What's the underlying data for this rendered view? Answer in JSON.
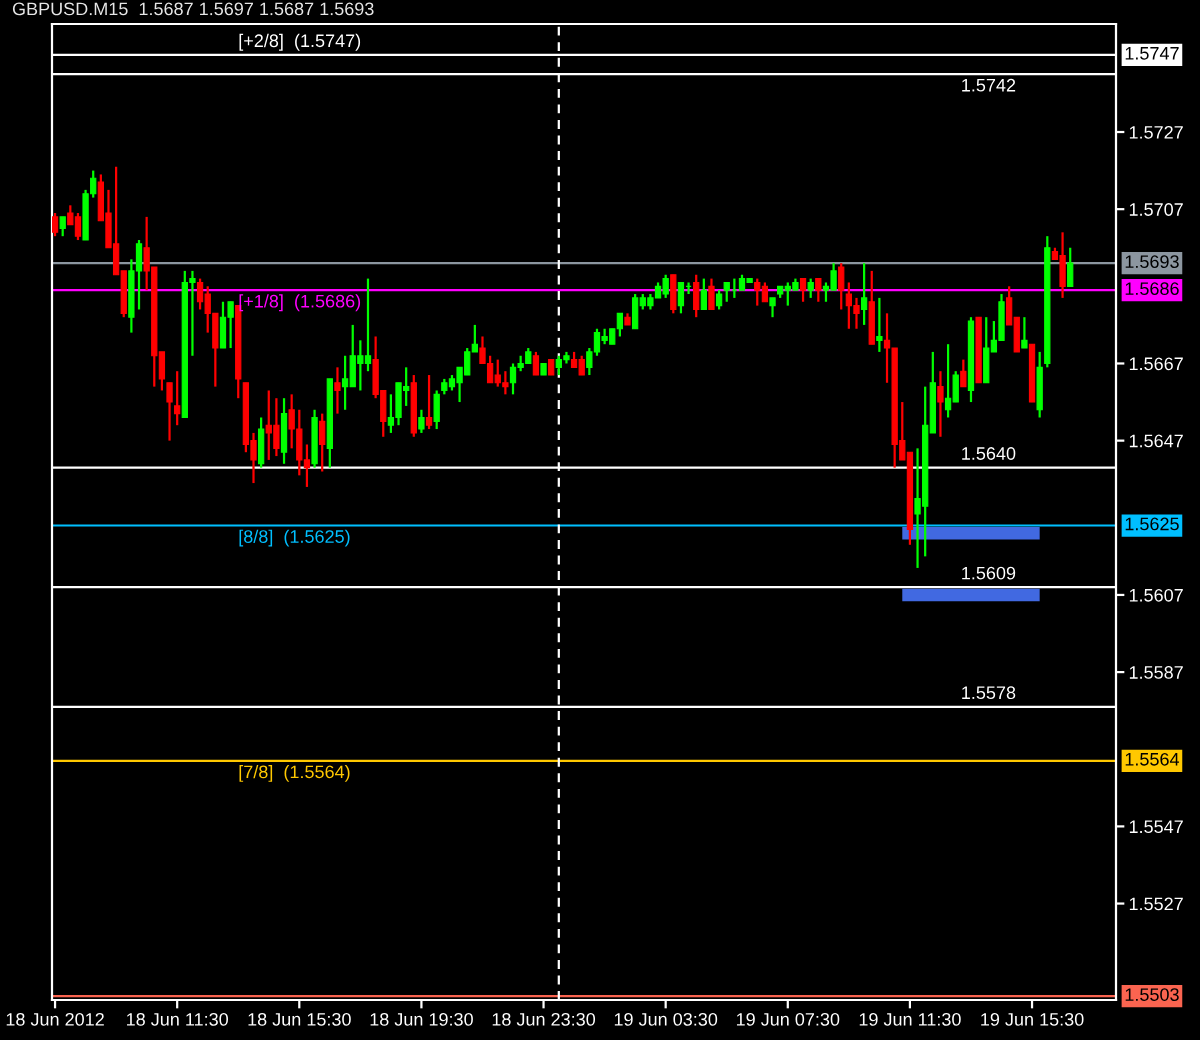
{
  "chart_data": {
    "type": "candlestick",
    "title": "GBPUSD.M15  1.5687 1.5697 1.5687 1.5693",
    "x": [
      "2012-06-18T07:30",
      "2012-06-18T07:45",
      "2012-06-18T08:00",
      "2012-06-18T08:15",
      "2012-06-18T08:30",
      "2012-06-18T08:45",
      "2012-06-18T09:00",
      "2012-06-18T09:15",
      "2012-06-18T09:30",
      "2012-06-18T09:45",
      "2012-06-18T10:00",
      "2012-06-18T10:15",
      "2012-06-18T10:30",
      "2012-06-18T10:45",
      "2012-06-18T11:00",
      "2012-06-18T11:15",
      "2012-06-18T11:30",
      "2012-06-18T11:45",
      "2012-06-18T12:00",
      "2012-06-18T12:15",
      "2012-06-18T12:30",
      "2012-06-18T12:45",
      "2012-06-18T13:00",
      "2012-06-18T13:15",
      "2012-06-18T13:30",
      "2012-06-18T13:45",
      "2012-06-18T14:00",
      "2012-06-18T14:15",
      "2012-06-18T14:30",
      "2012-06-18T14:45",
      "2012-06-18T15:00",
      "2012-06-18T15:15",
      "2012-06-18T15:30",
      "2012-06-18T15:45",
      "2012-06-18T16:00",
      "2012-06-18T16:15",
      "2012-06-18T16:30",
      "2012-06-18T16:45",
      "2012-06-18T17:00",
      "2012-06-18T17:15",
      "2012-06-18T17:30",
      "2012-06-18T17:45",
      "2012-06-18T18:00",
      "2012-06-18T18:15",
      "2012-06-18T18:30",
      "2012-06-18T18:45",
      "2012-06-18T19:00",
      "2012-06-18T19:15",
      "2012-06-18T19:30",
      "2012-06-18T19:45",
      "2012-06-18T20:00",
      "2012-06-18T20:15",
      "2012-06-18T20:30",
      "2012-06-18T20:45",
      "2012-06-18T21:00",
      "2012-06-18T21:15",
      "2012-06-18T21:30",
      "2012-06-18T21:45",
      "2012-06-18T22:00",
      "2012-06-18T22:15",
      "2012-06-18T22:30",
      "2012-06-18T22:45",
      "2012-06-18T23:00",
      "2012-06-18T23:15",
      "2012-06-18T23:30",
      "2012-06-18T23:45",
      "2012-06-19T00:00",
      "2012-06-19T00:15",
      "2012-06-19T00:30",
      "2012-06-19T00:45",
      "2012-06-19T01:00",
      "2012-06-19T01:15",
      "2012-06-19T01:30",
      "2012-06-19T01:45",
      "2012-06-19T02:00",
      "2012-06-19T02:15",
      "2012-06-19T02:30",
      "2012-06-19T02:45",
      "2012-06-19T03:00",
      "2012-06-19T03:15",
      "2012-06-19T03:30",
      "2012-06-19T03:45",
      "2012-06-19T04:00",
      "2012-06-19T04:15",
      "2012-06-19T04:30",
      "2012-06-19T04:45",
      "2012-06-19T05:00",
      "2012-06-19T05:15",
      "2012-06-19T05:30",
      "2012-06-19T05:45",
      "2012-06-19T06:00",
      "2012-06-19T06:15",
      "2012-06-19T06:30",
      "2012-06-19T06:45",
      "2012-06-19T07:00",
      "2012-06-19T07:15",
      "2012-06-19T07:30",
      "2012-06-19T07:45",
      "2012-06-19T08:00",
      "2012-06-19T08:15",
      "2012-06-19T08:30",
      "2012-06-19T08:45",
      "2012-06-19T09:00",
      "2012-06-19T09:15",
      "2012-06-19T09:30",
      "2012-06-19T09:45",
      "2012-06-19T10:00",
      "2012-06-19T10:15",
      "2012-06-19T10:30",
      "2012-06-19T10:45",
      "2012-06-19T11:00",
      "2012-06-19T11:15",
      "2012-06-19T11:30",
      "2012-06-19T11:45",
      "2012-06-19T12:00",
      "2012-06-19T12:15",
      "2012-06-19T12:30",
      "2012-06-19T12:45",
      "2012-06-19T13:00",
      "2012-06-19T13:15",
      "2012-06-19T13:30",
      "2012-06-19T13:45",
      "2012-06-19T14:00",
      "2012-06-19T14:15",
      "2012-06-19T14:30",
      "2012-06-19T14:45",
      "2012-06-19T15:00",
      "2012-06-19T15:15",
      "2012-06-19T15:30",
      "2012-06-19T15:45",
      "2012-06-19T16:00",
      "2012-06-19T16:15",
      "2012-06-19T16:30",
      "2012-06-19T16:45"
    ],
    "ohlc": [
      [
        1.5705,
        1.5706,
        1.57,
        1.5701
      ],
      [
        1.5702,
        1.5705,
        1.57,
        1.5705
      ],
      [
        1.5706,
        1.5708,
        1.5703,
        1.5703
      ],
      [
        1.5705,
        1.5706,
        1.5699,
        1.57
      ],
      [
        1.5699,
        1.5712,
        1.5699,
        1.5711
      ],
      [
        1.5711,
        1.5717,
        1.571,
        1.5715
      ],
      [
        1.5714,
        1.5716,
        1.5704,
        1.5704
      ],
      [
        1.5706,
        1.5712,
        1.5697,
        1.5697
      ],
      [
        1.5698,
        1.5718,
        1.569,
        1.569
      ],
      [
        1.5691,
        1.5691,
        1.5679,
        1.568
      ],
      [
        1.5679,
        1.5694,
        1.5675,
        1.5691
      ],
      [
        1.5691,
        1.5699,
        1.5681,
        1.5698
      ],
      [
        1.5697,
        1.5705,
        1.5686,
        1.5691
      ],
      [
        1.5692,
        1.5692,
        1.5661,
        1.5669
      ],
      [
        1.567,
        1.567,
        1.566,
        1.5663
      ],
      [
        1.5662,
        1.5662,
        1.5647,
        1.5657
      ],
      [
        1.5656,
        1.5665,
        1.5651,
        1.5654
      ],
      [
        1.5653,
        1.5691,
        1.5653,
        1.5688
      ],
      [
        1.5688,
        1.5691,
        1.5669,
        1.5689
      ],
      [
        1.5688,
        1.5689,
        1.5681,
        1.5683
      ],
      [
        1.5685,
        1.5687,
        1.5675,
        1.568
      ],
      [
        1.568,
        1.568,
        1.5661,
        1.5671
      ],
      [
        1.5671,
        1.5683,
        1.5671,
        1.5679
      ],
      [
        1.5679,
        1.5683,
        1.5671,
        1.5683
      ],
      [
        1.5682,
        1.5682,
        1.5658,
        1.5663
      ],
      [
        1.5662,
        1.5662,
        1.5644,
        1.5646
      ],
      [
        1.5647,
        1.5649,
        1.5636,
        1.5642
      ],
      [
        1.5641,
        1.5653,
        1.564,
        1.565
      ],
      [
        1.5651,
        1.566,
        1.5642,
        1.5649
      ],
      [
        1.5651,
        1.5658,
        1.5643,
        1.5645
      ],
      [
        1.5644,
        1.5658,
        1.5641,
        1.5654
      ],
      [
        1.5655,
        1.5659,
        1.5645,
        1.565
      ],
      [
        1.565,
        1.5655,
        1.5638,
        1.5642
      ],
      [
        1.5642,
        1.5646,
        1.5635,
        1.564
      ],
      [
        1.5641,
        1.5655,
        1.564,
        1.5653
      ],
      [
        1.5652,
        1.5654,
        1.5639,
        1.5646
      ],
      [
        1.5645,
        1.5663,
        1.564,
        1.5663
      ],
      [
        1.5662,
        1.5666,
        1.5654,
        1.566
      ],
      [
        1.5661,
        1.5669,
        1.5655,
        1.5663
      ],
      [
        1.5661,
        1.5677,
        1.5661,
        1.5669
      ],
      [
        1.5667,
        1.5673,
        1.566,
        1.5669
      ],
      [
        1.5667,
        1.5689,
        1.5665,
        1.5669
      ],
      [
        1.5668,
        1.5674,
        1.5658,
        1.5659
      ],
      [
        1.566,
        1.566,
        1.5648,
        1.5652
      ],
      [
        1.5651,
        1.5659,
        1.5649,
        1.5653
      ],
      [
        1.5653,
        1.5662,
        1.5651,
        1.5662
      ],
      [
        1.566,
        1.5666,
        1.5656,
        1.5661
      ],
      [
        1.5662,
        1.5664,
        1.5648,
        1.5649
      ],
      [
        1.565,
        1.5655,
        1.5649,
        1.5653
      ],
      [
        1.5653,
        1.5664,
        1.565,
        1.5651
      ],
      [
        1.5652,
        1.566,
        1.565,
        1.5659
      ],
      [
        1.566,
        1.5663,
        1.5659,
        1.5662
      ],
      [
        1.5661,
        1.5664,
        1.566,
        1.5663
      ],
      [
        1.5662,
        1.5666,
        1.5657,
        1.5666
      ],
      [
        1.5664,
        1.5671,
        1.5664,
        1.567
      ],
      [
        1.567,
        1.5677,
        1.567,
        1.5672
      ],
      [
        1.5671,
        1.5674,
        1.5667,
        1.5667
      ],
      [
        1.5667,
        1.5669,
        1.5662,
        1.5662
      ],
      [
        1.5664,
        1.5668,
        1.5661,
        1.5662
      ],
      [
        1.5662,
        1.5665,
        1.5659,
        1.5661
      ],
      [
        1.5662,
        1.5667,
        1.5659,
        1.5666
      ],
      [
        1.5666,
        1.5669,
        1.5665,
        1.5667
      ],
      [
        1.5667,
        1.5671,
        1.5667,
        1.567
      ],
      [
        1.5669,
        1.567,
        1.5664,
        1.5664
      ],
      [
        1.5664,
        1.5667,
        1.5664,
        1.5667
      ],
      [
        1.5668,
        1.5668,
        1.5664,
        1.5664
      ],
      [
        1.5666,
        1.5669,
        1.5664,
        1.5668
      ],
      [
        1.5668,
        1.567,
        1.5667,
        1.5669
      ],
      [
        1.5668,
        1.567,
        1.5666,
        1.5666
      ],
      [
        1.5668,
        1.5669,
        1.5664,
        1.5664
      ],
      [
        1.5666,
        1.5671,
        1.5664,
        1.567
      ],
      [
        1.567,
        1.5676,
        1.5669,
        1.5675
      ],
      [
        1.5673,
        1.5676,
        1.5672,
        1.5674
      ],
      [
        1.5672,
        1.5676,
        1.5672,
        1.5676
      ],
      [
        1.5676,
        1.568,
        1.5674,
        1.568
      ],
      [
        1.5679,
        1.568,
        1.5677,
        1.5677
      ],
      [
        1.5676,
        1.5685,
        1.5676,
        1.5684
      ],
      [
        1.5682,
        1.5685,
        1.5681,
        1.5684
      ],
      [
        1.5682,
        1.5685,
        1.5681,
        1.5684
      ],
      [
        1.5684,
        1.5688,
        1.5684,
        1.5687
      ],
      [
        1.5685,
        1.569,
        1.5684,
        1.5689
      ],
      [
        1.569,
        1.569,
        1.568,
        1.5681
      ],
      [
        1.5682,
        1.5688,
        1.568,
        1.5688
      ],
      [
        1.5687,
        1.5688,
        1.5685,
        1.5687
      ],
      [
        1.5688,
        1.569,
        1.5679,
        1.5681
      ],
      [
        1.5681,
        1.5689,
        1.5681,
        1.5686
      ],
      [
        1.5687,
        1.5689,
        1.5681,
        1.5681
      ],
      [
        1.5682,
        1.5686,
        1.5681,
        1.5685
      ],
      [
        1.5686,
        1.5688,
        1.5683,
        1.5688
      ],
      [
        1.5686,
        1.5689,
        1.5684,
        1.5686
      ],
      [
        1.5686,
        1.569,
        1.5686,
        1.5689
      ],
      [
        1.5688,
        1.5689,
        1.5688,
        1.5689
      ],
      [
        1.5688,
        1.5689,
        1.5682,
        1.5686
      ],
      [
        1.5687,
        1.5688,
        1.5683,
        1.5683
      ],
      [
        1.5682,
        1.5684,
        1.5679,
        1.5684
      ],
      [
        1.5685,
        1.5687,
        1.5684,
        1.5687
      ],
      [
        1.5686,
        1.5688,
        1.5682,
        1.5687
      ],
      [
        1.5686,
        1.5689,
        1.5686,
        1.5688
      ],
      [
        1.5689,
        1.5689,
        1.5683,
        1.5686
      ],
      [
        1.5686,
        1.5689,
        1.5684,
        1.5688
      ],
      [
        1.5689,
        1.5689,
        1.5683,
        1.5686
      ],
      [
        1.5686,
        1.5688,
        1.5683,
        1.5687
      ],
      [
        1.5686,
        1.5693,
        1.5686,
        1.5691
      ],
      [
        1.5692,
        1.5693,
        1.5681,
        1.5686
      ],
      [
        1.5685,
        1.5688,
        1.5676,
        1.5682
      ],
      [
        1.5682,
        1.5684,
        1.5676,
        1.568
      ],
      [
        1.5681,
        1.5693,
        1.5677,
        1.5684
      ],
      [
        1.5683,
        1.5691,
        1.5672,
        1.5672
      ],
      [
        1.5673,
        1.5684,
        1.567,
        1.5674
      ],
      [
        1.5673,
        1.568,
        1.5662,
        1.5671
      ],
      [
        1.5671,
        1.5671,
        1.564,
        1.5646
      ],
      [
        1.5647,
        1.5657,
        1.5642,
        1.5642
      ],
      [
        1.5644,
        1.5644,
        1.562,
        1.5624
      ],
      [
        1.5628,
        1.5645,
        1.5614,
        1.5632
      ],
      [
        1.563,
        1.5661,
        1.5617,
        1.5651
      ],
      [
        1.5649,
        1.567,
        1.5649,
        1.5662
      ],
      [
        1.5661,
        1.5665,
        1.5648,
        1.5657
      ],
      [
        1.5655,
        1.5672,
        1.5653,
        1.5658
      ],
      [
        1.5657,
        1.5665,
        1.5657,
        1.5664
      ],
      [
        1.5665,
        1.5668,
        1.5661,
        1.5661
      ],
      [
        1.566,
        1.5679,
        1.5657,
        1.5678
      ],
      [
        1.5679,
        1.5679,
        1.5662,
        1.5662
      ],
      [
        1.5662,
        1.5679,
        1.5662,
        1.5671
      ],
      [
        1.567,
        1.5678,
        1.567,
        1.5673
      ],
      [
        1.5673,
        1.5685,
        1.5673,
        1.5683
      ],
      [
        1.5684,
        1.5687,
        1.5677,
        1.5677
      ],
      [
        1.5679,
        1.5679,
        1.567,
        1.567
      ],
      [
        1.5671,
        1.5679,
        1.5671,
        1.5673
      ],
      [
        1.5672,
        1.5672,
        1.5657,
        1.5657
      ],
      [
        1.5655,
        1.567,
        1.5653,
        1.5666
      ],
      [
        1.5667,
        1.57,
        1.5666,
        1.5697
      ],
      [
        1.5696,
        1.5697,
        1.5694,
        1.5694
      ],
      [
        1.5695,
        1.5701,
        1.5684,
        1.5687
      ],
      [
        1.5687,
        1.5697,
        1.5687,
        1.5693
      ]
    ],
    "colors": [
      "#ff0000",
      "#00ff00",
      "#ff0000",
      "#ff0000",
      "#00ff00",
      "#00ff00",
      "#ff0000",
      "#ff0000",
      "#ff0000",
      "#ff0000",
      "#00ff00",
      "#00ff00",
      "#ff0000",
      "#ff0000",
      "#ff0000",
      "#ff0000",
      "#ff0000",
      "#00ff00",
      "#00ff00",
      "#ff0000",
      "#ff0000",
      "#ff0000",
      "#00ff00",
      "#00ff00",
      "#ff0000",
      "#ff0000",
      "#ff0000",
      "#00ff00",
      "#ff0000",
      "#ff0000",
      "#00ff00",
      "#ff0000",
      "#ff0000",
      "#ff0000",
      "#00ff00",
      "#ff0000",
      "#00ff00",
      "#ff0000",
      "#00ff00",
      "#00ff00",
      "#00ff00",
      "#00ff00",
      "#ff0000",
      "#ff0000",
      "#00ff00",
      "#00ff00",
      "#00ff00",
      "#ff0000",
      "#00ff00",
      "#ff0000",
      "#00ff00",
      "#00ff00",
      "#00ff00",
      "#00ff00",
      "#00ff00",
      "#00ff00",
      "#ff0000",
      "#ff0000",
      "#ff0000",
      "#ff0000",
      "#00ff00",
      "#00ff00",
      "#00ff00",
      "#ff0000",
      "#00ff00",
      "#ff0000",
      "#00ff00",
      "#00ff00",
      "#ff0000",
      "#ff0000",
      "#00ff00",
      "#00ff00",
      "#00ff00",
      "#00ff00",
      "#00ff00",
      "#ff0000",
      "#00ff00",
      "#00ff00",
      "#00ff00",
      "#00ff00",
      "#00ff00",
      "#ff0000",
      "#00ff00",
      "#00ff00",
      "#ff0000",
      "#00ff00",
      "#ff0000",
      "#00ff00",
      "#00ff00",
      "#00ff00",
      "#00ff00",
      "#00ff00",
      "#ff0000",
      "#ff0000",
      "#00ff00",
      "#00ff00",
      "#00ff00",
      "#00ff00",
      "#ff0000",
      "#00ff00",
      "#ff0000",
      "#00ff00",
      "#00ff00",
      "#ff0000",
      "#ff0000",
      "#ff0000",
      "#00ff00",
      "#ff0000",
      "#00ff00",
      "#ff0000",
      "#ff0000",
      "#ff0000",
      "#ff0000",
      "#00ff00",
      "#00ff00",
      "#00ff00",
      "#ff0000",
      "#00ff00",
      "#00ff00",
      "#ff0000",
      "#00ff00",
      "#ff0000",
      "#00ff00",
      "#00ff00",
      "#00ff00",
      "#ff0000",
      "#ff0000",
      "#00ff00",
      "#ff0000",
      "#00ff00",
      "#00ff00",
      "#ff0000",
      "#ff0000",
      "#00ff00"
    ],
    "series": [
      {
        "type": "line",
        "color": "#4169e1",
        "x": [
          "2012-06-19T11:15",
          "2012-06-19T15:45"
        ],
        "values": [
          1.5623,
          1.5623
        ]
      },
      {
        "type": "line",
        "color": "#4169e1",
        "x": [
          "2012-06-19T11:15",
          "2012-06-19T15:45"
        ],
        "values": [
          1.5607,
          1.5607
        ]
      }
    ],
    "ref_lines": [
      {
        "axis": "y",
        "value": 1.5747,
        "label": "1.5747",
        "color": "#ffffff"
      },
      {
        "axis": "y",
        "value": 1.5742,
        "color": "#ffffff"
      },
      {
        "axis": "y",
        "value": 1.5693,
        "label": "1.5693",
        "color": "#8c96a0"
      },
      {
        "axis": "y",
        "value": 1.5686,
        "label": "1.5686",
        "color": "#ff00ff"
      },
      {
        "axis": "y",
        "value": 1.564,
        "color": "#ffffff"
      },
      {
        "axis": "y",
        "value": 1.5625,
        "label": "1.5625",
        "color": "#00bfff"
      },
      {
        "axis": "y",
        "value": 1.5609,
        "color": "#ffffff"
      },
      {
        "axis": "y",
        "value": 1.5578,
        "color": "#ffffff"
      },
      {
        "axis": "y",
        "value": 1.5564,
        "label": "1.5564",
        "color": "#ffc800"
      },
      {
        "axis": "y",
        "value": 1.5503,
        "label": "1.5503",
        "color": "#fa6450"
      },
      {
        "axis": "x",
        "value": "2012-06-19T00:00",
        "color": "#ffffff",
        "line_style": "dashed"
      }
    ],
    "annotations": [
      {
        "text": "[+2/8]  (1.5747)",
        "x": "2012-06-18T13:30",
        "y": 1.5747
      },
      {
        "text": "1.5742",
        "x": "2012-06-19T13:10",
        "y": 1.5742
      },
      {
        "text": "[+1/8]  (1.5686)",
        "x": "2012-06-18T13:30",
        "y": 1.5686
      },
      {
        "text": "1.5640",
        "x": "2012-06-19T13:10",
        "y": 1.564
      },
      {
        "text": "[8/8]  (1.5625)",
        "x": "2012-06-18T13:30",
        "y": 1.5625
      },
      {
        "text": "1.5609",
        "x": "2012-06-19T13:10",
        "y": 1.5609
      },
      {
        "text": "1.5578",
        "x": "2012-06-19T13:10",
        "y": 1.5578
      },
      {
        "text": "[7/8]  (1.5564)",
        "x": "2012-06-18T13:30",
        "y": 1.5564
      }
    ],
    "xlim": [
      "2012-06-18T07:24",
      "2012-06-19T18:15"
    ],
    "ylim": [
      1.5502,
      1.5755
    ],
    "xticks": [
      {
        "value": "2012-06-18T07:30",
        "label": "18 Jun 2012"
      },
      {
        "value": "2012-06-18T11:30",
        "label": "18 Jun 11:30"
      },
      {
        "value": "2012-06-18T15:30",
        "label": "18 Jun 15:30"
      },
      {
        "value": "2012-06-18T19:30",
        "label": "18 Jun 19:30"
      },
      {
        "value": "2012-06-18T23:30",
        "label": "18 Jun 23:30"
      },
      {
        "value": "2012-06-19T03:30",
        "label": "19 Jun 03:30"
      },
      {
        "value": "2012-06-19T07:30",
        "label": "19 Jun 07:30"
      },
      {
        "value": "2012-06-19T11:30",
        "label": "19 Jun 11:30"
      },
      {
        "value": "2012-06-19T15:30",
        "label": "19 Jun 15:30"
      }
    ],
    "yticks": [
      1.5727,
      1.5707,
      1.5667,
      1.5647,
      1.5607,
      1.5587,
      1.5547,
      1.5527
    ]
  }
}
